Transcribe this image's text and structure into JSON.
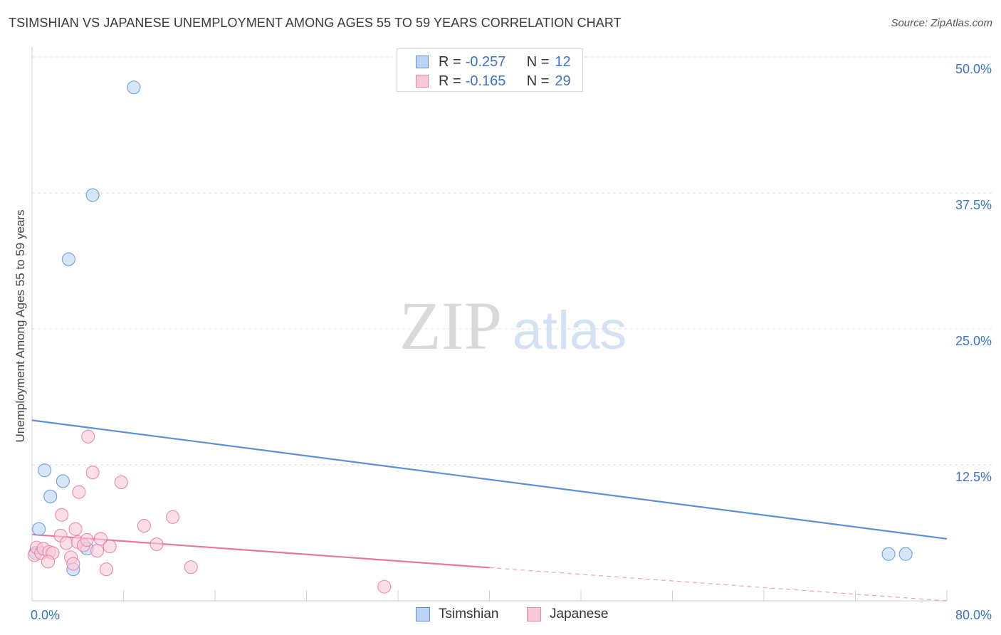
{
  "chart_data": {
    "type": "scatter",
    "title": "TSIMSHIAN VS JAPANESE UNEMPLOYMENT AMONG AGES 55 TO 59 YEARS CORRELATION CHART",
    "source": "Source: ZipAtlas.com",
    "ylabel": "Unemployment Among Ages 55 to 59 years",
    "xlim": [
      0,
      80
    ],
    "ylim": [
      0,
      50
    ],
    "x_tick_labels": [
      "0.0%",
      "80.0%"
    ],
    "y_tick_values": [
      12.5,
      25.0,
      37.5,
      50.0
    ],
    "y_tick_labels": [
      "12.5%",
      "25.0%",
      "37.5%",
      "50.0%"
    ],
    "watermark": {
      "part1": "ZIP",
      "part2": "atlas"
    },
    "series": [
      {
        "name": "Tsimshian",
        "color": "#5b8fd8",
        "fill": "#bcd3f5",
        "stats": {
          "r_label": "R =",
          "r_value": "-0.257",
          "n_label": "N =",
          "n_value": "12"
        },
        "points": [
          [
            8.9,
            47.2
          ],
          [
            5.3,
            37.3
          ],
          [
            3.2,
            31.4
          ],
          [
            1.1,
            12.0
          ],
          [
            2.7,
            11.0
          ],
          [
            1.6,
            9.6
          ],
          [
            0.6,
            6.6
          ],
          [
            4.8,
            4.8
          ],
          [
            3.6,
            2.9
          ],
          [
            0.3,
            4.4
          ],
          [
            74.9,
            4.3
          ],
          [
            76.4,
            4.3
          ]
        ],
        "trend": {
          "x1": 0,
          "y1": 16.6,
          "x2": 80,
          "y2": 5.7,
          "dash_from": 80
        }
      },
      {
        "name": "Japanese",
        "color": "#e8779e",
        "fill": "#f9c9d8",
        "stats": {
          "r_label": "R =",
          "r_value": "-0.165",
          "n_label": "N =",
          "n_value": "29"
        },
        "points": [
          [
            0.2,
            4.2
          ],
          [
            0.4,
            4.9
          ],
          [
            0.8,
            4.4
          ],
          [
            1.0,
            4.8
          ],
          [
            1.5,
            4.5
          ],
          [
            1.8,
            4.4
          ],
          [
            2.5,
            6.0
          ],
          [
            2.6,
            7.9
          ],
          [
            3.0,
            5.3
          ],
          [
            3.4,
            4.0
          ],
          [
            3.6,
            3.4
          ],
          [
            3.8,
            6.6
          ],
          [
            4.0,
            5.4
          ],
          [
            4.1,
            10.0
          ],
          [
            4.5,
            5.1
          ],
          [
            4.8,
            5.6
          ],
          [
            4.9,
            15.1
          ],
          [
            5.3,
            11.8
          ],
          [
            5.7,
            4.6
          ],
          [
            6.0,
            5.7
          ],
          [
            6.5,
            2.9
          ],
          [
            6.8,
            5.0
          ],
          [
            7.8,
            10.9
          ],
          [
            9.8,
            6.9
          ],
          [
            10.9,
            5.2
          ],
          [
            12.3,
            7.7
          ],
          [
            13.9,
            3.1
          ],
          [
            30.8,
            1.3
          ],
          [
            1.4,
            3.6
          ]
        ],
        "trend": {
          "x1": 0,
          "y1": 6.1,
          "x2": 80,
          "y2": 0.0,
          "dash_from": 40
        }
      }
    ]
  }
}
